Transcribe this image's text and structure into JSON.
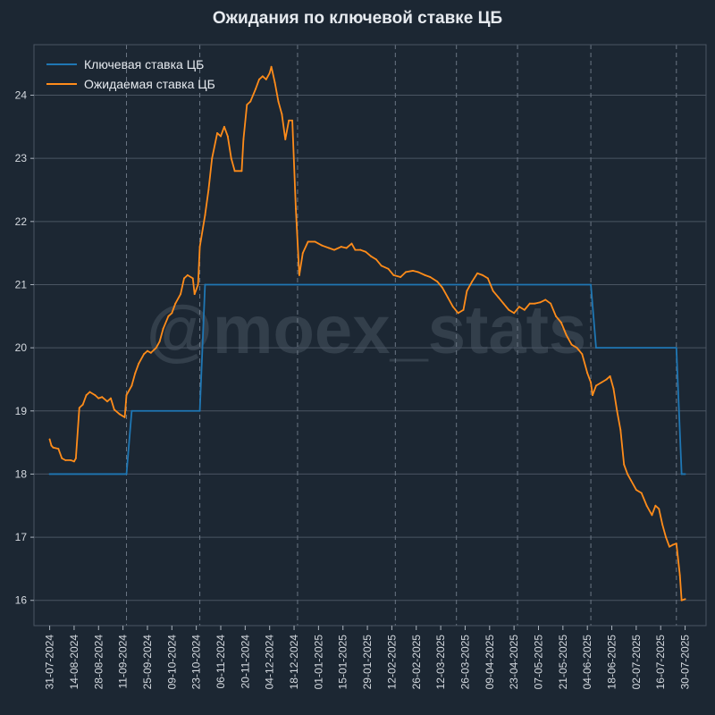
{
  "chart_data": {
    "type": "line",
    "title": "Ожидания по ключевой ставке ЦБ",
    "watermark": "@moex_stats",
    "xlabel": "",
    "ylabel": "",
    "ylim": [
      15.6,
      24.8
    ],
    "x_range": [
      "2024-07-22",
      "2025-08-11"
    ],
    "yticks": [
      16,
      17,
      18,
      19,
      20,
      21,
      22,
      23,
      24
    ],
    "xtick_labels": [
      "31-07-2024",
      "14-08-2024",
      "28-08-2024",
      "11-09-2024",
      "25-09-2024",
      "09-10-2024",
      "23-10-2024",
      "06-11-2024",
      "20-11-2024",
      "04-12-2024",
      "18-12-2024",
      "01-01-2025",
      "15-01-2025",
      "29-01-2025",
      "12-02-2025",
      "26-02-2025",
      "12-03-2025",
      "26-03-2025",
      "09-04-2025",
      "23-04-2025",
      "07-05-2025",
      "21-05-2025",
      "04-06-2025",
      "18-06-2025",
      "02-07-2025",
      "16-07-2025",
      "30-07-2025"
    ],
    "xtick_dates": [
      "2024-07-31",
      "2024-08-14",
      "2024-08-28",
      "2024-09-11",
      "2024-09-25",
      "2024-10-09",
      "2024-10-23",
      "2024-11-06",
      "2024-11-20",
      "2024-12-04",
      "2024-12-18",
      "2025-01-01",
      "2025-01-15",
      "2025-01-29",
      "2025-02-12",
      "2025-02-26",
      "2025-03-12",
      "2025-03-26",
      "2025-04-09",
      "2025-04-23",
      "2025-05-07",
      "2025-05-21",
      "2025-06-04",
      "2025-06-18",
      "2025-07-02",
      "2025-07-16",
      "2025-07-30"
    ],
    "vlines": [
      "2024-09-13",
      "2024-10-25",
      "2024-12-20",
      "2025-02-14",
      "2025-03-21",
      "2025-04-25",
      "2025-06-06",
      "2025-07-25"
    ],
    "grid": "horizontal",
    "legend_position": "top-left",
    "colors": {
      "background": "#1c2733",
      "key_rate": "#1f77b4",
      "expected": "#ff8c1a",
      "grid": "#4a5563",
      "vlines": "#6b7684"
    },
    "series": [
      {
        "name": "Ключевая ставка ЦБ",
        "color": "#1f77b4",
        "step": true,
        "points": [
          {
            "x": "2024-07-31",
            "y": 18
          },
          {
            "x": "2024-09-13",
            "y": 18
          },
          {
            "x": "2024-09-16",
            "y": 19
          },
          {
            "x": "2024-10-25",
            "y": 19
          },
          {
            "x": "2024-10-28",
            "y": 21
          },
          {
            "x": "2025-06-06",
            "y": 21
          },
          {
            "x": "2025-06-09",
            "y": 20
          },
          {
            "x": "2025-07-25",
            "y": 20
          },
          {
            "x": "2025-07-28",
            "y": 18
          },
          {
            "x": "2025-07-30",
            "y": 18
          }
        ]
      },
      {
        "name": "Ожидаемая ставка ЦБ",
        "color": "#ff8c1a",
        "points": [
          {
            "x": "2024-07-31",
            "y": 18.55
          },
          {
            "x": "2024-08-01",
            "y": 18.45
          },
          {
            "x": "2024-08-02",
            "y": 18.42
          },
          {
            "x": "2024-08-05",
            "y": 18.4
          },
          {
            "x": "2024-08-07",
            "y": 18.25
          },
          {
            "x": "2024-08-09",
            "y": 18.22
          },
          {
            "x": "2024-08-12",
            "y": 18.22
          },
          {
            "x": "2024-08-14",
            "y": 18.2
          },
          {
            "x": "2024-08-15",
            "y": 18.25
          },
          {
            "x": "2024-08-17",
            "y": 19.05
          },
          {
            "x": "2024-08-19",
            "y": 19.1
          },
          {
            "x": "2024-08-21",
            "y": 19.25
          },
          {
            "x": "2024-08-23",
            "y": 19.3
          },
          {
            "x": "2024-08-26",
            "y": 19.25
          },
          {
            "x": "2024-08-28",
            "y": 19.2
          },
          {
            "x": "2024-08-30",
            "y": 19.22
          },
          {
            "x": "2024-09-02",
            "y": 19.15
          },
          {
            "x": "2024-09-04",
            "y": 19.2
          },
          {
            "x": "2024-09-06",
            "y": 19.02
          },
          {
            "x": "2024-09-09",
            "y": 18.95
          },
          {
            "x": "2024-09-12",
            "y": 18.9
          },
          {
            "x": "2024-09-13",
            "y": 19.25
          },
          {
            "x": "2024-09-16",
            "y": 19.4
          },
          {
            "x": "2024-09-18",
            "y": 19.6
          },
          {
            "x": "2024-09-20",
            "y": 19.75
          },
          {
            "x": "2024-09-23",
            "y": 19.9
          },
          {
            "x": "2024-09-25",
            "y": 19.95
          },
          {
            "x": "2024-09-27",
            "y": 19.92
          },
          {
            "x": "2024-09-30",
            "y": 20.0
          },
          {
            "x": "2024-10-02",
            "y": 20.1
          },
          {
            "x": "2024-10-04",
            "y": 20.3
          },
          {
            "x": "2024-10-07",
            "y": 20.5
          },
          {
            "x": "2024-10-09",
            "y": 20.55
          },
          {
            "x": "2024-10-11",
            "y": 20.7
          },
          {
            "x": "2024-10-14",
            "y": 20.85
          },
          {
            "x": "2024-10-16",
            "y": 21.1
          },
          {
            "x": "2024-10-18",
            "y": 21.15
          },
          {
            "x": "2024-10-21",
            "y": 21.1
          },
          {
            "x": "2024-10-22",
            "y": 20.85
          },
          {
            "x": "2024-10-24",
            "y": 21.0
          },
          {
            "x": "2024-10-25",
            "y": 21.6
          },
          {
            "x": "2024-10-28",
            "y": 22.1
          },
          {
            "x": "2024-10-30",
            "y": 22.5
          },
          {
            "x": "2024-11-01",
            "y": 23.0
          },
          {
            "x": "2024-11-04",
            "y": 23.4
          },
          {
            "x": "2024-11-06",
            "y": 23.35
          },
          {
            "x": "2024-11-08",
            "y": 23.5
          },
          {
            "x": "2024-11-10",
            "y": 23.35
          },
          {
            "x": "2024-11-12",
            "y": 23.0
          },
          {
            "x": "2024-11-14",
            "y": 22.8
          },
          {
            "x": "2024-11-18",
            "y": 22.8
          },
          {
            "x": "2024-11-19",
            "y": 23.3
          },
          {
            "x": "2024-11-21",
            "y": 23.85
          },
          {
            "x": "2024-11-23",
            "y": 23.9
          },
          {
            "x": "2024-11-26",
            "y": 24.1
          },
          {
            "x": "2024-11-28",
            "y": 24.25
          },
          {
            "x": "2024-11-30",
            "y": 24.3
          },
          {
            "x": "2024-12-02",
            "y": 24.25
          },
          {
            "x": "2024-12-04",
            "y": 24.35
          },
          {
            "x": "2024-12-05",
            "y": 24.45
          },
          {
            "x": "2024-12-07",
            "y": 24.2
          },
          {
            "x": "2024-12-09",
            "y": 23.9
          },
          {
            "x": "2024-12-11",
            "y": 23.7
          },
          {
            "x": "2024-12-13",
            "y": 23.3
          },
          {
            "x": "2024-12-15",
            "y": 23.6
          },
          {
            "x": "2024-12-17",
            "y": 23.6
          },
          {
            "x": "2024-12-19",
            "y": 22.2
          },
          {
            "x": "2024-12-21",
            "y": 21.15
          },
          {
            "x": "2024-12-23",
            "y": 21.5
          },
          {
            "x": "2024-12-26",
            "y": 21.68
          },
          {
            "x": "2024-12-30",
            "y": 21.68
          },
          {
            "x": "2025-01-03",
            "y": 21.62
          },
          {
            "x": "2025-01-07",
            "y": 21.58
          },
          {
            "x": "2025-01-10",
            "y": 21.55
          },
          {
            "x": "2025-01-14",
            "y": 21.6
          },
          {
            "x": "2025-01-17",
            "y": 21.58
          },
          {
            "x": "2025-01-20",
            "y": 21.65
          },
          {
            "x": "2025-01-22",
            "y": 21.55
          },
          {
            "x": "2025-01-25",
            "y": 21.55
          },
          {
            "x": "2025-01-28",
            "y": 21.52
          },
          {
            "x": "2025-01-31",
            "y": 21.45
          },
          {
            "x": "2025-02-03",
            "y": 21.4
          },
          {
            "x": "2025-02-06",
            "y": 21.3
          },
          {
            "x": "2025-02-10",
            "y": 21.25
          },
          {
            "x": "2025-02-13",
            "y": 21.15
          },
          {
            "x": "2025-02-17",
            "y": 21.12
          },
          {
            "x": "2025-02-20",
            "y": 21.2
          },
          {
            "x": "2025-02-24",
            "y": 21.22
          },
          {
            "x": "2025-02-27",
            "y": 21.2
          },
          {
            "x": "2025-03-03",
            "y": 21.15
          },
          {
            "x": "2025-03-06",
            "y": 21.12
          },
          {
            "x": "2025-03-10",
            "y": 21.05
          },
          {
            "x": "2025-03-13",
            "y": 20.95
          },
          {
            "x": "2025-03-16",
            "y": 20.8
          },
          {
            "x": "2025-03-19",
            "y": 20.65
          },
          {
            "x": "2025-03-22",
            "y": 20.55
          },
          {
            "x": "2025-03-25",
            "y": 20.6
          },
          {
            "x": "2025-03-27",
            "y": 20.9
          },
          {
            "x": "2025-03-30",
            "y": 21.05
          },
          {
            "x": "2025-04-02",
            "y": 21.18
          },
          {
            "x": "2025-04-05",
            "y": 21.15
          },
          {
            "x": "2025-04-08",
            "y": 21.1
          },
          {
            "x": "2025-04-11",
            "y": 20.9
          },
          {
            "x": "2025-04-14",
            "y": 20.8
          },
          {
            "x": "2025-04-17",
            "y": 20.7
          },
          {
            "x": "2025-04-20",
            "y": 20.6
          },
          {
            "x": "2025-04-23",
            "y": 20.55
          },
          {
            "x": "2025-04-26",
            "y": 20.65
          },
          {
            "x": "2025-04-29",
            "y": 20.6
          },
          {
            "x": "2025-05-02",
            "y": 20.7
          },
          {
            "x": "2025-05-05",
            "y": 20.7
          },
          {
            "x": "2025-05-08",
            "y": 20.72
          },
          {
            "x": "2025-05-11",
            "y": 20.76
          },
          {
            "x": "2025-05-14",
            "y": 20.7
          },
          {
            "x": "2025-05-17",
            "y": 20.5
          },
          {
            "x": "2025-05-20",
            "y": 20.4
          },
          {
            "x": "2025-05-23",
            "y": 20.2
          },
          {
            "x": "2025-05-26",
            "y": 20.05
          },
          {
            "x": "2025-05-29",
            "y": 20.0
          },
          {
            "x": "2025-06-01",
            "y": 19.9
          },
          {
            "x": "2025-06-04",
            "y": 19.6
          },
          {
            "x": "2025-06-06",
            "y": 19.45
          },
          {
            "x": "2025-06-07",
            "y": 19.25
          },
          {
            "x": "2025-06-09",
            "y": 19.4
          },
          {
            "x": "2025-06-12",
            "y": 19.45
          },
          {
            "x": "2025-06-15",
            "y": 19.5
          },
          {
            "x": "2025-06-17",
            "y": 19.55
          },
          {
            "x": "2025-06-19",
            "y": 19.35
          },
          {
            "x": "2025-06-21",
            "y": 19.0
          },
          {
            "x": "2025-06-23",
            "y": 18.7
          },
          {
            "x": "2025-06-25",
            "y": 18.15
          },
          {
            "x": "2025-06-27",
            "y": 18.0
          },
          {
            "x": "2025-06-29",
            "y": 17.9
          },
          {
            "x": "2025-07-02",
            "y": 17.75
          },
          {
            "x": "2025-07-05",
            "y": 17.7
          },
          {
            "x": "2025-07-08",
            "y": 17.5
          },
          {
            "x": "2025-07-11",
            "y": 17.35
          },
          {
            "x": "2025-07-13",
            "y": 17.5
          },
          {
            "x": "2025-07-15",
            "y": 17.45
          },
          {
            "x": "2025-07-17",
            "y": 17.2
          },
          {
            "x": "2025-07-19",
            "y": 17.0
          },
          {
            "x": "2025-07-21",
            "y": 16.85
          },
          {
            "x": "2025-07-23",
            "y": 16.88
          },
          {
            "x": "2025-07-25",
            "y": 16.9
          },
          {
            "x": "2025-07-27",
            "y": 16.4
          },
          {
            "x": "2025-07-28",
            "y": 16.0
          },
          {
            "x": "2025-07-30",
            "y": 16.02
          }
        ]
      }
    ]
  }
}
